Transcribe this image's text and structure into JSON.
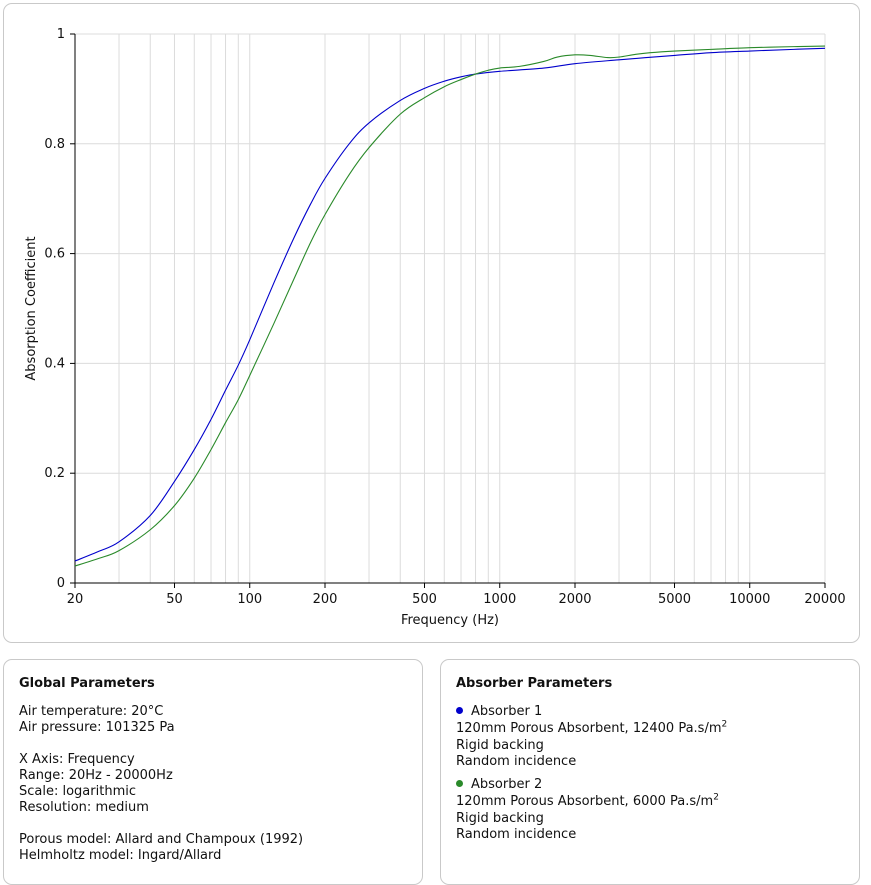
{
  "chart_data": {
    "type": "line",
    "xlabel": "Frequency (Hz)",
    "ylabel": "Absorption Coefficient",
    "xscale": "log",
    "xlim": [
      20,
      20000
    ],
    "ylim": [
      0,
      1
    ],
    "x_ticks": [
      20,
      50,
      100,
      200,
      500,
      1000,
      2000,
      5000,
      10000,
      20000
    ],
    "x_tick_labels": [
      "20",
      "50",
      "100",
      "200",
      "500",
      "1000",
      "2000",
      "5000",
      "10000",
      "20000"
    ],
    "y_ticks": [
      0,
      0.2,
      0.4,
      0.6,
      0.8,
      1
    ],
    "y_tick_labels": [
      "0",
      "0.2",
      "0.4",
      "0.6",
      "0.8",
      "1"
    ],
    "grid": true,
    "series": [
      {
        "name": "Absorber 1",
        "color": "#0000cc",
        "x": [
          20,
          25,
          30,
          40,
          50,
          60,
          70,
          80,
          90,
          100,
          125,
          150,
          175,
          200,
          250,
          300,
          400,
          500,
          600,
          700,
          800,
          1000,
          1500,
          2000,
          3000,
          5000,
          7000,
          10000,
          15000,
          20000
        ],
        "y": [
          0.04,
          0.058,
          0.075,
          0.123,
          0.185,
          0.243,
          0.298,
          0.351,
          0.397,
          0.443,
          0.547,
          0.628,
          0.69,
          0.737,
          0.8,
          0.838,
          0.879,
          0.901,
          0.914,
          0.922,
          0.927,
          0.932,
          0.938,
          0.946,
          0.953,
          0.961,
          0.966,
          0.969,
          0.972,
          0.974
        ]
      },
      {
        "name": "Absorber 2",
        "color": "#2a8a2a",
        "x": [
          20,
          25,
          30,
          40,
          50,
          60,
          70,
          80,
          90,
          100,
          125,
          150,
          175,
          200,
          250,
          300,
          400,
          500,
          600,
          700,
          800,
          900,
          1000,
          1200,
          1500,
          1700,
          2000,
          2300,
          2700,
          3000,
          3500,
          4000,
          5000,
          7000,
          10000,
          15000,
          20000
        ],
        "y": [
          0.031,
          0.045,
          0.059,
          0.097,
          0.141,
          0.191,
          0.243,
          0.292,
          0.334,
          0.378,
          0.473,
          0.553,
          0.62,
          0.671,
          0.744,
          0.793,
          0.854,
          0.884,
          0.904,
          0.917,
          0.927,
          0.934,
          0.938,
          0.941,
          0.95,
          0.958,
          0.962,
          0.961,
          0.957,
          0.958,
          0.963,
          0.966,
          0.969,
          0.972,
          0.975,
          0.977,
          0.978
        ]
      }
    ]
  },
  "global": {
    "title": "Global Parameters",
    "air_temperature": "Air temperature: 20°C",
    "air_pressure": "Air pressure: 101325 Pa",
    "x_axis": "X Axis: Frequency",
    "range": "Range: 20Hz - 20000Hz",
    "scale": "Scale: logarithmic",
    "resolution": "Resolution: medium",
    "porous_model": "Porous model: Allard and Champoux (1992)",
    "helmholtz_model": "Helmholtz model: Ingard/Allard"
  },
  "absorbers": {
    "title": "Absorber Parameters",
    "items": [
      {
        "name": "Absorber 1",
        "color": "#0000cc",
        "desc": "120mm Porous Absorbent, 12400 Pa.s/m",
        "sup": "2",
        "backing": "Rigid backing",
        "incidence": "Random incidence"
      },
      {
        "name": "Absorber 2",
        "color": "#2a8a2a",
        "desc": "120mm Porous Absorbent, 6000 Pa.s/m",
        "sup": "2",
        "backing": "Rigid backing",
        "incidence": "Random incidence"
      }
    ]
  }
}
